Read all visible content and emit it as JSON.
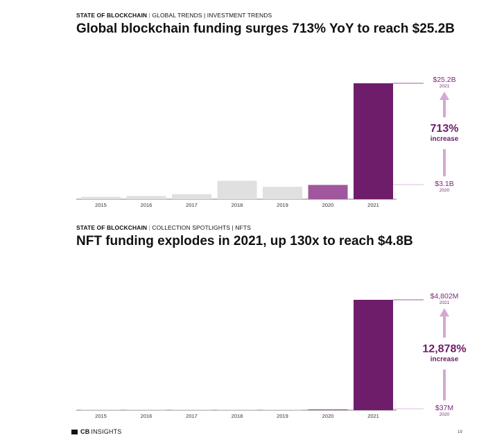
{
  "charts": [
    {
      "kicker": {
        "bold": "STATE OF BLOCKCHAIN",
        "rest": "GLOBAL TRENDS | INVESTMENT TRENDS"
      },
      "title": "Global blockchain funding surges 713% YoY to reach $25.2B",
      "callout": {
        "top_value": "$25.2B",
        "top_year": "2021",
        "bottom_value": "$3.1B",
        "bottom_year": "2020",
        "pct": "713%",
        "pct_label": "increase"
      }
    },
    {
      "kicker": {
        "bold": "STATE OF BLOCKCHAIN",
        "rest": "COLLECTION SPOTLIGHTS | NFTS"
      },
      "title": "NFT funding explodes in 2021, up 130x to reach $4.8B",
      "callout": {
        "top_value": "$4,802M",
        "top_year": "2021",
        "bottom_value": "$37M",
        "bottom_year": "2020",
        "pct": "12,878%",
        "pct_label": "increase"
      }
    }
  ],
  "chart_data": [
    {
      "type": "bar",
      "categories": [
        "2015",
        "2016",
        "2017",
        "2018",
        "2019",
        "2020",
        "2021"
      ],
      "values": [
        0.5,
        0.7,
        1.1,
        4.0,
        2.7,
        3.1,
        25.2
      ],
      "unit": "$B",
      "colors": [
        "#e0e0e0",
        "#e0e0e0",
        "#e0e0e0",
        "#e0e0e0",
        "#e0e0e0",
        "#a0579e",
        "#6e1d6b"
      ],
      "ylim": [
        0,
        25.2
      ],
      "grid": false
    },
    {
      "type": "bar",
      "categories": [
        "2015",
        "2016",
        "2017",
        "2018",
        "2019",
        "2020",
        "2021"
      ],
      "values": [
        1,
        2,
        4,
        12,
        14,
        37,
        4802
      ],
      "unit": "$M",
      "colors": [
        "#e0e0e0",
        "#e0e0e0",
        "#e0e0e0",
        "#e0e0e0",
        "#e0e0e0",
        "#a0579e",
        "#6e1d6b"
      ],
      "ylim": [
        0,
        4802
      ],
      "grid": false
    }
  ],
  "footer": {
    "logo_bold": "CB",
    "logo_rest": "INSIGHTS",
    "page": "19"
  }
}
